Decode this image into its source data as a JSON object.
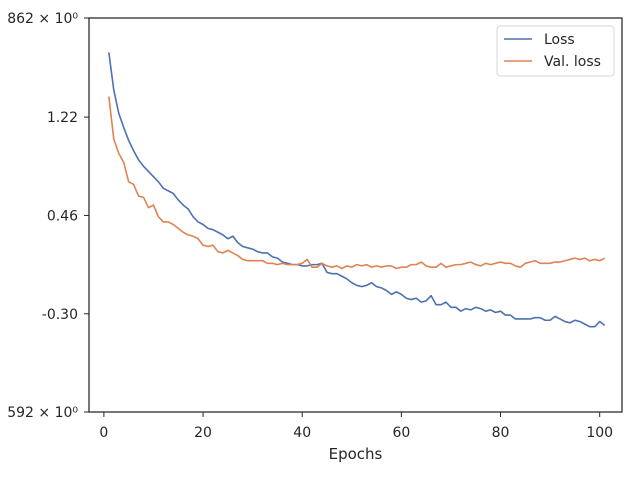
{
  "chart_data": {
    "type": "line",
    "title": "",
    "xlabel": "Epochs",
    "ylabel": "",
    "xlim": [
      -3,
      104.5
    ],
    "ylim": [
      -1.0592,
      1.9862
    ],
    "x_ticks": [
      0,
      20,
      40,
      60,
      80,
      100
    ],
    "x_tick_labels": [
      "0",
      "20",
      "40",
      "60",
      "80",
      "100"
    ],
    "y_ticks": [
      -1.0592,
      -0.3,
      0.46,
      1.22,
      1.9862
    ],
    "y_tick_labels": [
      "592 × 10⁰",
      "-0.30",
      "0.46",
      "1.22",
      "862 × 10⁰"
    ],
    "grid": false,
    "legend_position": "top-right",
    "colors": {
      "loss": "#4c72b0",
      "val_loss": "#dd8452",
      "axis": "#262626"
    },
    "series": [
      {
        "name": "Loss",
        "color": "#4c72b0",
        "values": [
          1.72,
          1.43,
          1.25,
          1.14,
          1.04,
          0.96,
          0.89,
          0.84,
          0.8,
          0.76,
          0.72,
          0.67,
          0.65,
          0.63,
          0.58,
          0.54,
          0.51,
          0.45,
          0.41,
          0.39,
          0.36,
          0.35,
          0.33,
          0.31,
          0.28,
          0.3,
          0.25,
          0.22,
          0.21,
          0.2,
          0.18,
          0.17,
          0.17,
          0.14,
          0.13,
          0.1,
          0.09,
          0.08,
          0.08,
          0.07,
          0.07,
          0.08,
          0.08,
          0.09,
          0.02,
          0.01,
          0.01,
          -0.01,
          -0.03,
          -0.06,
          -0.08,
          -0.09,
          -0.08,
          -0.06,
          -0.09,
          -0.1,
          -0.12,
          -0.15,
          -0.13,
          -0.15,
          -0.18,
          -0.19,
          -0.18,
          -0.21,
          -0.2,
          -0.16,
          -0.23,
          -0.23,
          -0.21,
          -0.25,
          -0.25,
          -0.28,
          -0.26,
          -0.27,
          -0.25,
          -0.26,
          -0.28,
          -0.27,
          -0.29,
          -0.28,
          -0.31,
          -0.31,
          -0.34,
          -0.34,
          -0.34,
          -0.34,
          -0.33,
          -0.33,
          -0.35,
          -0.35,
          -0.32,
          -0.34,
          -0.36,
          -0.37,
          -0.35,
          -0.36,
          -0.38,
          -0.4,
          -0.4,
          -0.36,
          -0.39
        ]
      },
      {
        "name": "Val. loss",
        "color": "#dd8452",
        "values": [
          1.38,
          1.05,
          0.94,
          0.87,
          0.72,
          0.7,
          0.61,
          0.6,
          0.52,
          0.54,
          0.45,
          0.41,
          0.41,
          0.39,
          0.36,
          0.33,
          0.31,
          0.3,
          0.28,
          0.23,
          0.22,
          0.23,
          0.18,
          0.17,
          0.19,
          0.17,
          0.15,
          0.12,
          0.11,
          0.11,
          0.11,
          0.11,
          0.09,
          0.09,
          0.08,
          0.09,
          0.08,
          0.08,
          0.08,
          0.09,
          0.12,
          0.06,
          0.06,
          0.09,
          0.07,
          0.06,
          0.07,
          0.05,
          0.07,
          0.06,
          0.08,
          0.07,
          0.08,
          0.06,
          0.07,
          0.06,
          0.07,
          0.07,
          0.05,
          0.06,
          0.06,
          0.08,
          0.08,
          0.1,
          0.07,
          0.06,
          0.06,
          0.09,
          0.06,
          0.07,
          0.08,
          0.08,
          0.09,
          0.1,
          0.08,
          0.07,
          0.09,
          0.08,
          0.09,
          0.1,
          0.09,
          0.09,
          0.07,
          0.06,
          0.09,
          0.1,
          0.11,
          0.09,
          0.09,
          0.09,
          0.1,
          0.1,
          0.11,
          0.12,
          0.13,
          0.12,
          0.13,
          0.11,
          0.12,
          0.11,
          0.13
        ]
      }
    ]
  }
}
